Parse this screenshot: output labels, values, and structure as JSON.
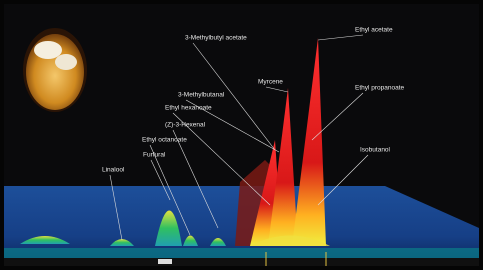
{
  "labels": [
    "3-Methylbutyl acetate",
    "Ethyl acetate",
    "Myrcene",
    "Ethyl propanoate",
    "3-Methylbutanal",
    "Ethyl hexanoate",
    "(Z)-3-Hexenal",
    "Ethyl octanoate",
    "Furfural",
    "Linalool",
    "Isobutanol"
  ]
}
